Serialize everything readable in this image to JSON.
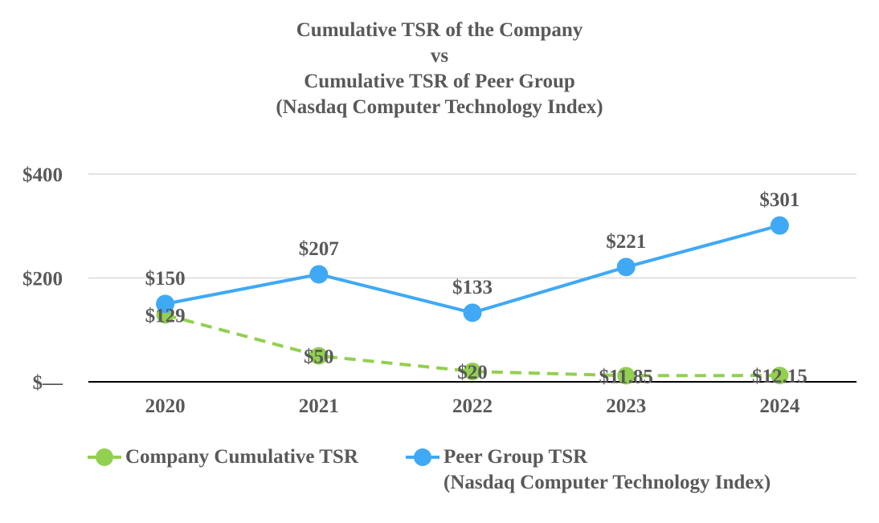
{
  "title_lines": [
    "Cumulative TSR of the Company",
    "vs",
    "Cumulative TSR of Peer Group",
    "(Nasdaq Computer Technology Index)"
  ],
  "chart_data": {
    "type": "line",
    "categories": [
      "2020",
      "2021",
      "2022",
      "2023",
      "2024"
    ],
    "ylim": [
      0,
      400
    ],
    "yticks": [
      0,
      200,
      400
    ],
    "ytick_labels": [
      "$—",
      "$200",
      "$400"
    ],
    "grid": true,
    "series": [
      {
        "name": "Company Cumulative TSR",
        "values": [
          129,
          50,
          20,
          11.85,
          12.15
        ],
        "labels": [
          "$129",
          "$50",
          "$20",
          "$11.85",
          "$12.15"
        ],
        "color": "#92d050",
        "dash": true
      },
      {
        "name": "Peer Group TSR (Nasdaq Computer Technology Index)",
        "values": [
          150,
          207,
          133,
          221,
          301
        ],
        "labels": [
          "$150",
          "$207",
          "$133",
          "$221",
          "$301"
        ],
        "color": "#3fa9f5",
        "dash": false
      }
    ]
  },
  "legend": {
    "company_label": "Company Cumulative TSR",
    "peer_label_line1": "Peer Group TSR",
    "peer_label_line2": "(Nasdaq Computer Technology Index)"
  }
}
